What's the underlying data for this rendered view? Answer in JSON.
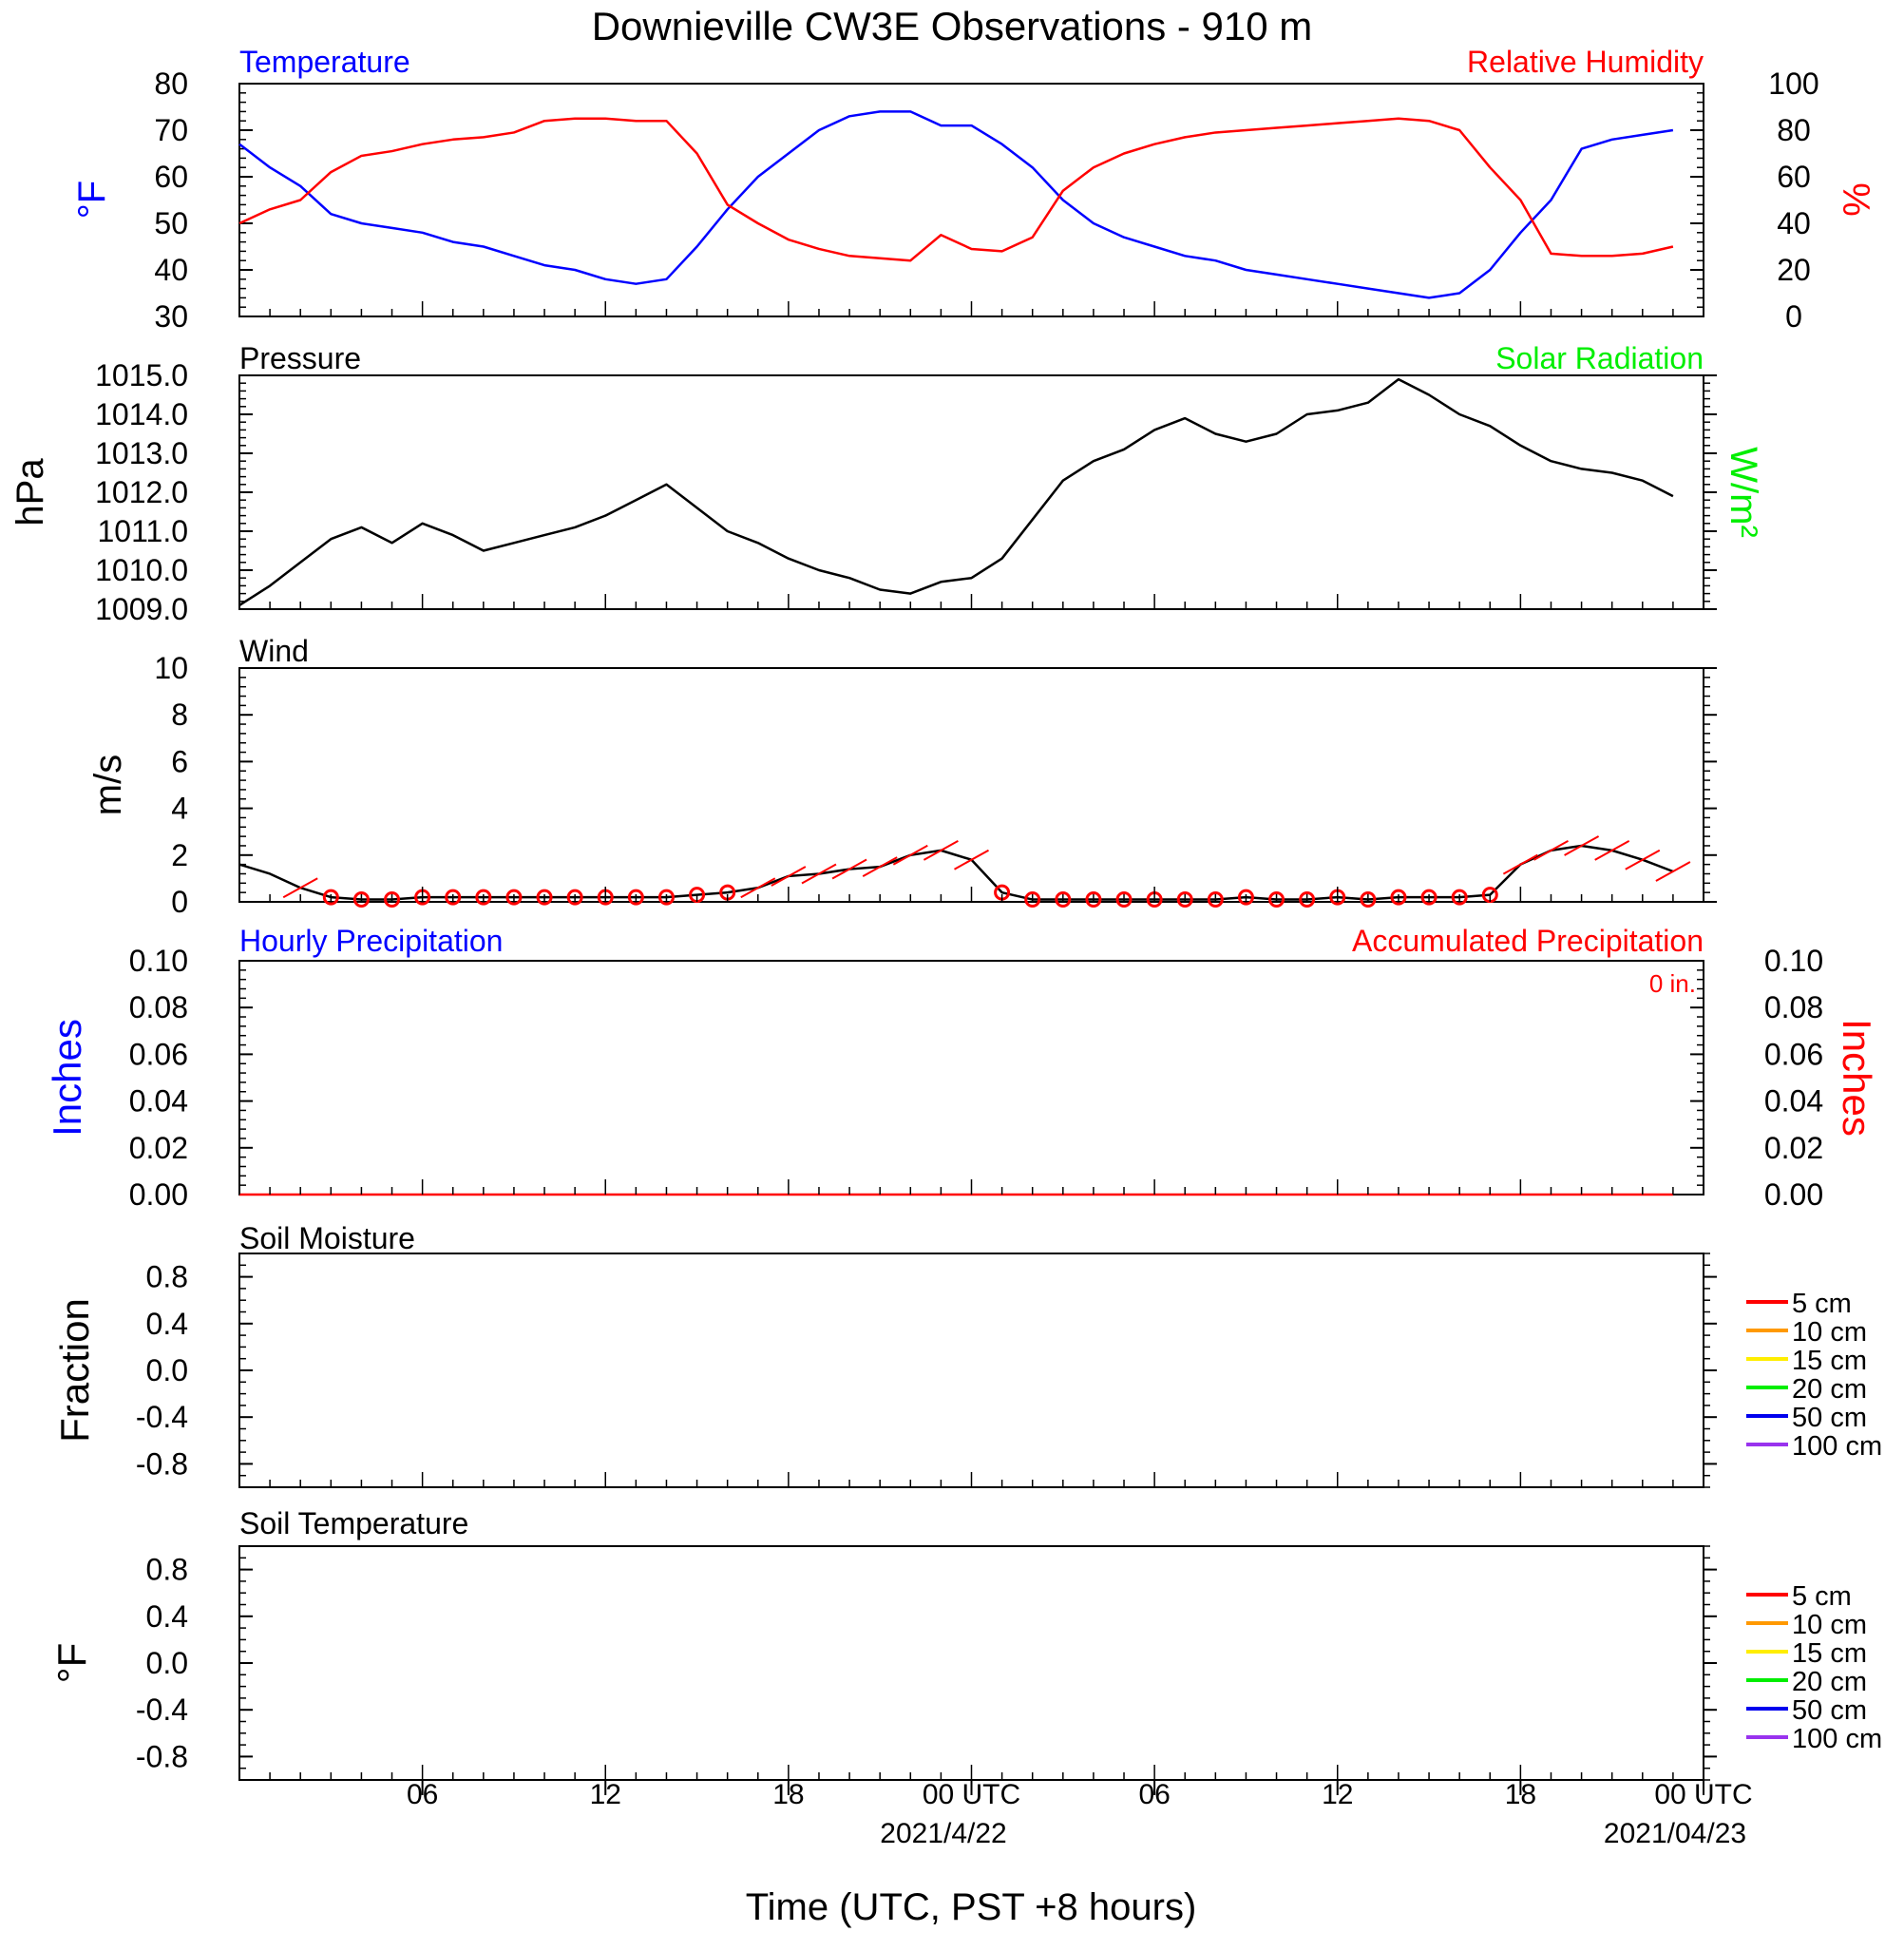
{
  "title": "Downieville CW3E Observations - 910 m",
  "xaxis": {
    "label": "Time (UTC, PST +8 hours)",
    "ticks": [
      "06",
      "12",
      "18",
      "00 UTC",
      "06",
      "12",
      "18",
      "00 UTC"
    ],
    "dates": [
      "2021/4/22",
      "2021/04/23"
    ]
  },
  "colors": {
    "temperature": "#0000ff",
    "humidity": "#ff0000",
    "pressure": "#000000",
    "solar": "#00ee00",
    "wind": "#000000",
    "barb": "#ff0000",
    "hourly_precip": "#0000ff",
    "accum_precip": "#ff0000"
  },
  "panels": {
    "temp_rh": {
      "left_title": "Temperature",
      "right_title": "Relative Humidity",
      "left_unit": "°F",
      "right_unit": "%",
      "left_ticks": [
        "80",
        "70",
        "60",
        "50",
        "40",
        "30"
      ],
      "right_ticks": [
        "100",
        "80",
        "60",
        "40",
        "20",
        "0"
      ]
    },
    "pressure": {
      "left_title": "Pressure",
      "right_title": "Solar Radiation",
      "left_unit": "hPa",
      "right_unit": "W/m²",
      "left_ticks": [
        "1015.0",
        "1014.0",
        "1013.0",
        "1012.0",
        "1011.0",
        "1010.0",
        "1009.0"
      ]
    },
    "wind": {
      "left_title": "Wind",
      "left_unit": "m/s",
      "left_ticks": [
        "10",
        "8",
        "6",
        "4",
        "2",
        "0"
      ]
    },
    "precip": {
      "left_title": "Hourly Precipitation",
      "right_title": "Accumulated Precipitation",
      "total_label": "0 in.",
      "left_unit": "Inches",
      "right_unit": "Inches",
      "left_ticks": [
        "0.10",
        "0.08",
        "0.06",
        "0.04",
        "0.02",
        "0.00"
      ],
      "right_ticks": [
        "0.10",
        "0.08",
        "0.06",
        "0.04",
        "0.02",
        "0.00"
      ]
    },
    "soil_moisture": {
      "left_title": "Soil Moisture",
      "left_unit": "Fraction",
      "left_ticks": [
        "0.8",
        "0.4",
        "0.0",
        "-0.4",
        "-0.8"
      ],
      "legend": [
        {
          "label": "5 cm",
          "color": "#ff0000"
        },
        {
          "label": "10 cm",
          "color": "#ff9900"
        },
        {
          "label": "15 cm",
          "color": "#ffee00"
        },
        {
          "label": "20 cm",
          "color": "#00ee00"
        },
        {
          "label": "50 cm",
          "color": "#0000ee"
        },
        {
          "label": "100 cm",
          "color": "#9933ee"
        }
      ]
    },
    "soil_temp": {
      "left_title": "Soil Temperature",
      "left_unit": "°F",
      "left_ticks": [
        "0.8",
        "0.4",
        "0.0",
        "-0.4",
        "-0.8"
      ],
      "legend": [
        {
          "label": "5 cm",
          "color": "#ff0000"
        },
        {
          "label": "10 cm",
          "color": "#ff9900"
        },
        {
          "label": "15 cm",
          "color": "#ffee00"
        },
        {
          "label": "20 cm",
          "color": "#00ee00"
        },
        {
          "label": "50 cm",
          "color": "#0000ee"
        },
        {
          "label": "100 cm",
          "color": "#9933ee"
        }
      ]
    }
  },
  "chart_data": [
    {
      "type": "line",
      "title": "Temperature",
      "xlabel": "Time (UTC, PST +8 hours)",
      "ylabel": "°F",
      "ylim": [
        30,
        80
      ],
      "series": [
        {
          "name": "Temperature",
          "x": [
            1,
            2,
            3,
            4,
            5,
            6,
            7,
            8,
            9,
            10,
            11,
            12,
            13,
            14,
            15,
            16,
            17,
            18,
            19,
            20,
            21,
            22,
            23,
            24,
            25,
            26,
            27,
            28,
            29,
            30,
            31,
            32,
            33,
            34,
            35,
            36,
            37,
            38,
            39,
            40,
            41,
            42,
            43,
            44,
            45,
            46,
            47,
            48
          ],
          "values": [
            67,
            62,
            58,
            52,
            50,
            49,
            48,
            46,
            45,
            43,
            41,
            40,
            38,
            37,
            38,
            45,
            53,
            60,
            65,
            70,
            73,
            74,
            74,
            71,
            71,
            67,
            62,
            55,
            50,
            47,
            45,
            43,
            42,
            40,
            39,
            38,
            37,
            36,
            35,
            34,
            35,
            40,
            48,
            55,
            66,
            68,
            69,
            70
          ]
        },
        {
          "name": "Relative Humidity",
          "axis": "right",
          "ylim": [
            0,
            100
          ],
          "x": [
            1,
            2,
            3,
            4,
            5,
            6,
            7,
            8,
            9,
            10,
            11,
            12,
            13,
            14,
            15,
            16,
            17,
            18,
            19,
            20,
            21,
            22,
            23,
            24,
            25,
            26,
            27,
            28,
            29,
            30,
            31,
            32,
            33,
            34,
            35,
            36,
            37,
            38,
            39,
            40,
            41,
            42,
            43,
            44,
            45,
            46,
            47,
            48
          ],
          "values": [
            40,
            46,
            50,
            62,
            69,
            71,
            74,
            76,
            77,
            79,
            84,
            85,
            85,
            84,
            84,
            70,
            48,
            40,
            33,
            29,
            26,
            25,
            24,
            35,
            29,
            28,
            34,
            54,
            64,
            70,
            74,
            77,
            79,
            80,
            81,
            82,
            83,
            84,
            85,
            84,
            80,
            64,
            50,
            27,
            26,
            26,
            27,
            30
          ]
        }
      ]
    },
    {
      "type": "line",
      "title": "Pressure",
      "ylabel": "hPa",
      "ylim": [
        1009,
        1015
      ],
      "series": [
        {
          "name": "Pressure",
          "x": [
            1,
            2,
            3,
            4,
            5,
            6,
            7,
            8,
            9,
            10,
            11,
            12,
            13,
            14,
            15,
            16,
            17,
            18,
            19,
            20,
            21,
            22,
            23,
            24,
            25,
            26,
            27,
            28,
            29,
            30,
            31,
            32,
            33,
            34,
            35,
            36,
            37,
            38,
            39,
            40,
            41,
            42,
            43,
            44,
            45,
            46,
            47,
            48
          ],
          "values": [
            1009.1,
            1009.6,
            1010.2,
            1010.8,
            1011.1,
            1010.7,
            1011.2,
            1010.9,
            1010.5,
            1010.7,
            1010.9,
            1011.1,
            1011.4,
            1011.8,
            1012.2,
            1011.6,
            1011.0,
            1010.7,
            1010.3,
            1010.0,
            1009.8,
            1009.5,
            1009.4,
            1009.7,
            1009.8,
            1010.3,
            1011.3,
            1012.3,
            1012.8,
            1013.1,
            1013.6,
            1013.9,
            1013.5,
            1013.3,
            1013.5,
            1014.0,
            1014.1,
            1014.3,
            1014.9,
            1014.5,
            1014.0,
            1013.7,
            1013.2,
            1012.8,
            1012.6,
            1012.5,
            1012.3,
            1011.9
          ]
        }
      ]
    },
    {
      "type": "line",
      "title": "Wind",
      "ylabel": "m/s",
      "ylim": [
        0,
        10
      ],
      "series": [
        {
          "name": "Wind",
          "x": [
            1,
            2,
            3,
            4,
            5,
            6,
            7,
            8,
            9,
            10,
            11,
            12,
            13,
            14,
            15,
            16,
            17,
            18,
            19,
            20,
            21,
            22,
            23,
            24,
            25,
            26,
            27,
            28,
            29,
            30,
            31,
            32,
            33,
            34,
            35,
            36,
            37,
            38,
            39,
            40,
            41,
            42,
            43,
            44,
            45,
            46,
            47,
            48
          ],
          "values": [
            1.6,
            1.2,
            0.6,
            0.2,
            0.1,
            0.1,
            0.2,
            0.2,
            0.2,
            0.2,
            0.2,
            0.2,
            0.2,
            0.2,
            0.2,
            0.3,
            0.4,
            0.6,
            1.1,
            1.2,
            1.4,
            1.5,
            2.0,
            2.2,
            1.8,
            0.4,
            0.1,
            0.1,
            0.1,
            0.1,
            0.1,
            0.1,
            0.1,
            0.2,
            0.1,
            0.1,
            0.2,
            0.1,
            0.2,
            0.2,
            0.2,
            0.3,
            1.6,
            2.2,
            2.4,
            2.2,
            1.8,
            1.3
          ]
        }
      ]
    },
    {
      "type": "line",
      "title": "Hourly Precipitation",
      "ylabel": "Inches",
      "ylim": [
        0,
        0.1
      ],
      "series": [
        {
          "name": "Accumulated Precipitation",
          "x": [
            1,
            48
          ],
          "values": [
            0,
            0
          ]
        }
      ]
    }
  ]
}
